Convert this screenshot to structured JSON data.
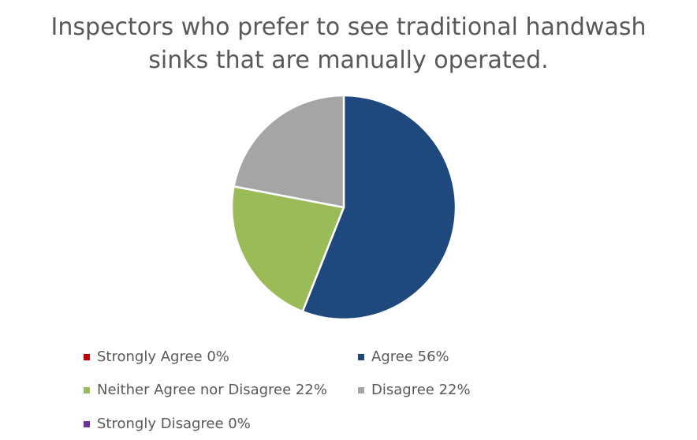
{
  "chart_data": {
    "type": "pie",
    "title_lines": [
      "Inspectors who prefer to see traditional handwash",
      "sinks that are manually operated."
    ],
    "categories": [
      "Strongly Agree",
      "Agree",
      "Neither Agree nor Disagree",
      "Disagree",
      "Strongly Disagree"
    ],
    "values": [
      0,
      56,
      22,
      22,
      0
    ],
    "colors": [
      "#c00000",
      "#1f497d",
      "#9bbb59",
      "#a5a5a5",
      "#7030a0"
    ],
    "legend": [
      {
        "label": "Strongly Agree 0%",
        "color": "#c00000"
      },
      {
        "label": "Agree 56%",
        "color": "#1f497d"
      },
      {
        "label": "Neither Agree nor Disagree 22%",
        "color": "#9bbb59"
      },
      {
        "label": "Disagree 22%",
        "color": "#a5a5a5"
      },
      {
        "label": "Strongly Disagree 0%",
        "color": "#7030a0"
      }
    ],
    "legend_position": "bottom"
  }
}
